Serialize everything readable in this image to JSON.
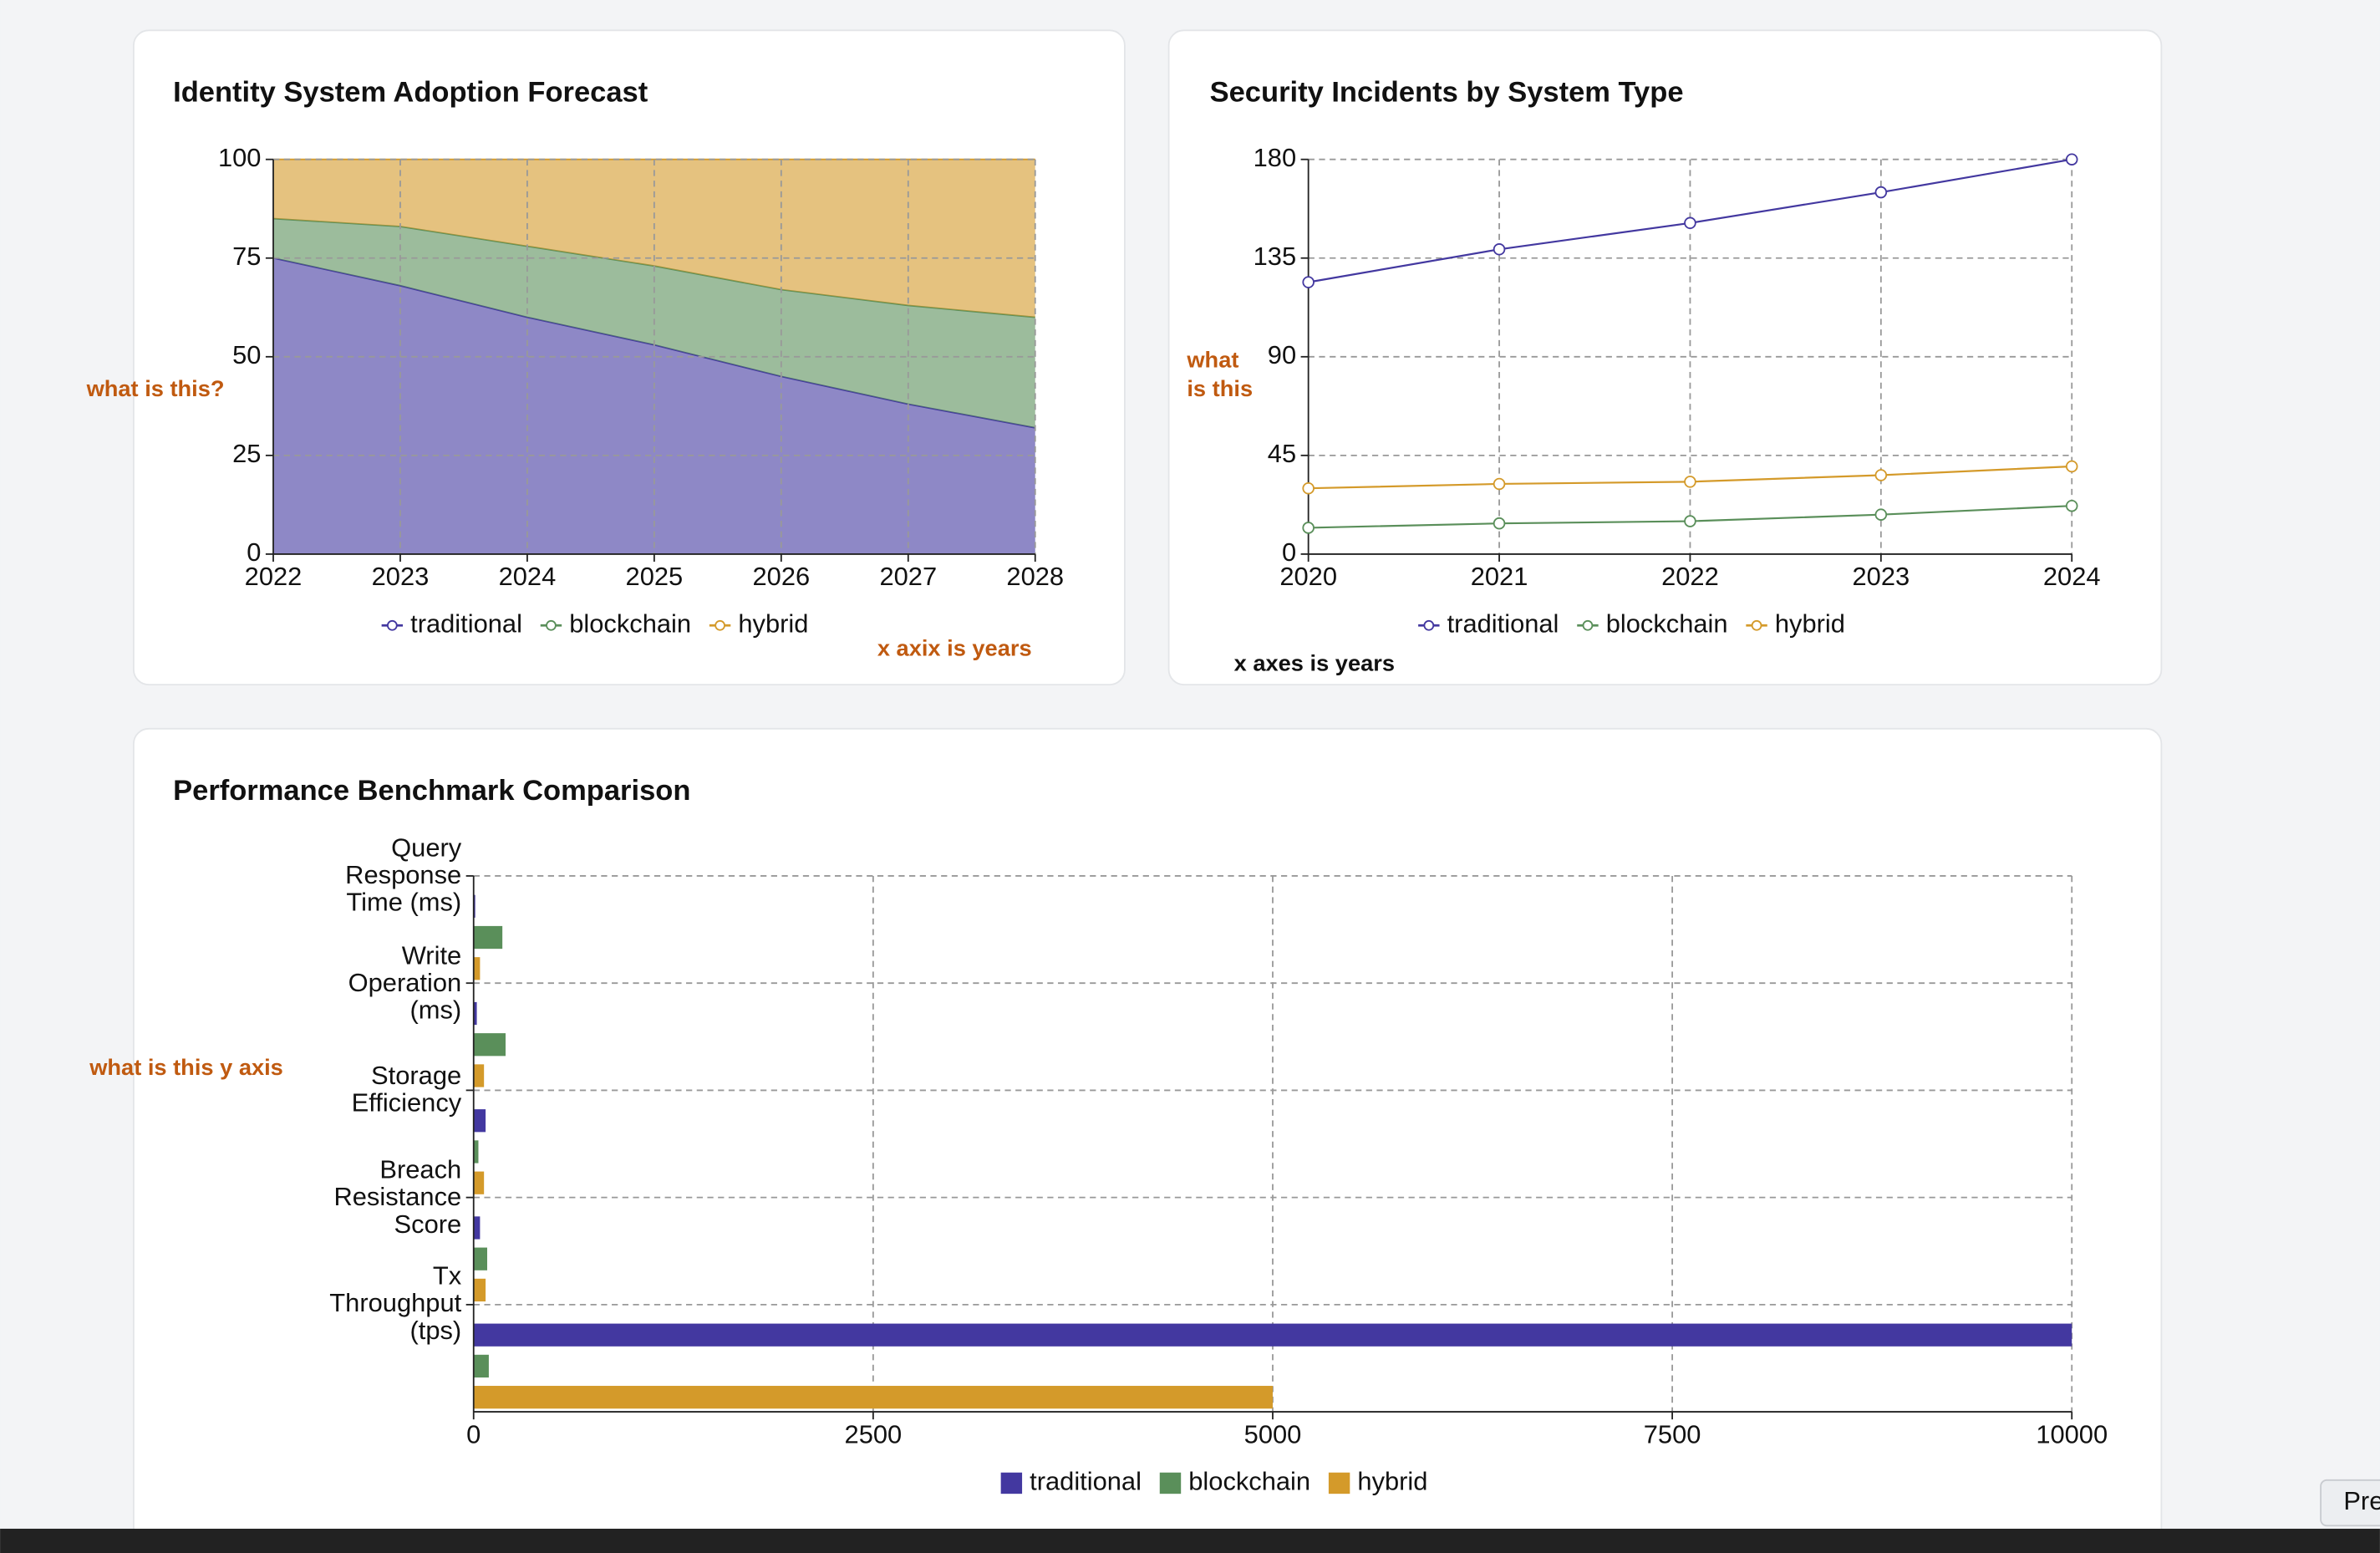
{
  "chart_data": [
    {
      "type": "area",
      "stacked": true,
      "title": "Identity System Adoption Forecast",
      "categories": [
        "2022",
        "2023",
        "2024",
        "2025",
        "2026",
        "2027",
        "2028"
      ],
      "series": [
        {
          "name": "traditional",
          "color": "#4338a0",
          "values": [
            75,
            68,
            60,
            53,
            45,
            38,
            32
          ]
        },
        {
          "name": "blockchain",
          "color": "#5a8f5a",
          "values": [
            10,
            15,
            18,
            20,
            22,
            25,
            28
          ]
        },
        {
          "name": "hybrid",
          "color": "#d49a2a",
          "values": [
            15,
            17,
            22,
            27,
            33,
            37,
            40
          ]
        }
      ],
      "ylim": [
        0,
        100
      ],
      "yticks": [
        0,
        25,
        50,
        75,
        100
      ],
      "grid": true,
      "annotations": [
        "what is this?",
        "x axix is years"
      ]
    },
    {
      "type": "line",
      "title": "Security Incidents by System Type",
      "categories": [
        "2020",
        "2021",
        "2022",
        "2023",
        "2024"
      ],
      "series": [
        {
          "name": "traditional",
          "color": "#4338a0",
          "values": [
            124,
            139,
            151,
            165,
            180
          ]
        },
        {
          "name": "blockchain",
          "color": "#5a8f5a",
          "values": [
            12,
            14,
            15,
            18,
            22
          ]
        },
        {
          "name": "hybrid",
          "color": "#d49a2a",
          "values": [
            30,
            32,
            33,
            36,
            40
          ]
        }
      ],
      "ylim": [
        0,
        180
      ],
      "yticks": [
        0,
        45,
        90,
        135,
        180
      ],
      "grid": true,
      "annotations": [
        "what is this",
        "x axes is years"
      ]
    },
    {
      "type": "bar",
      "orientation": "horizontal",
      "title": "Performance Benchmark Comparison",
      "categories": [
        "Query Response Time (ms)",
        "Write Operation (ms)",
        "Storage Efficiency",
        "Breach Resistance Score",
        "Tx Throughput (tps)"
      ],
      "series": [
        {
          "name": "traditional",
          "color": "#4338a0",
          "values": [
            10,
            20,
            75,
            40,
            10000
          ]
        },
        {
          "name": "blockchain",
          "color": "#5a8f5a",
          "values": [
            180,
            200,
            30,
            85,
            95
          ]
        },
        {
          "name": "hybrid",
          "color": "#d49a2a",
          "values": [
            40,
            65,
            65,
            75,
            5000
          ]
        }
      ],
      "xlim": [
        0,
        10000
      ],
      "xticks": [
        0,
        2500,
        5000,
        7500,
        10000
      ],
      "grid": true,
      "annotations": [
        "what is this y axis"
      ]
    }
  ],
  "ui": {
    "button": "Pre"
  }
}
